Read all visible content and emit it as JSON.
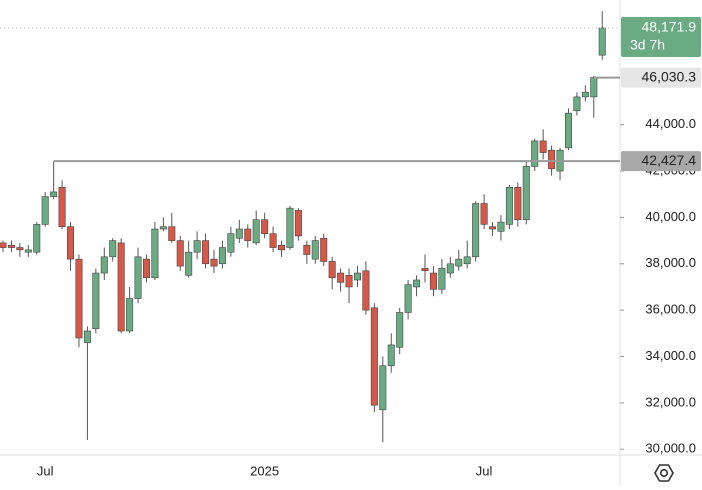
{
  "chart_data": {
    "type": "candlestick",
    "categories": [
      null,
      null,
      null,
      null,
      null,
      "Jul",
      null,
      null,
      null,
      null,
      null,
      null,
      null,
      null,
      null,
      null,
      null,
      null,
      null,
      null,
      null,
      null,
      null,
      null,
      null,
      null,
      null,
      null,
      null,
      null,
      null,
      "2025",
      null,
      null,
      null,
      null,
      null,
      null,
      null,
      null,
      null,
      null,
      null,
      null,
      null,
      null,
      null,
      null,
      null,
      null,
      null,
      null,
      null,
      null,
      null,
      null,
      null,
      "Jul",
      null,
      null,
      null,
      null,
      null,
      null,
      null,
      null,
      null,
      null,
      null,
      null,
      null,
      null
    ],
    "open": [
      38900,
      38800,
      38700,
      38500,
      38500,
      39700,
      40900,
      41300,
      39600,
      38200,
      34600,
      35200,
      37600,
      38300,
      38900,
      35100,
      36500,
      38200,
      37400,
      39500,
      39600,
      39000,
      37500,
      38500,
      39000,
      38200,
      38000,
      38500,
      39100,
      39500,
      38900,
      39900,
      39300,
      38800,
      38700,
      40300,
      38800,
      38200,
      39100,
      38100,
      37600,
      37500,
      37300,
      37700,
      36100,
      31700,
      33600,
      34400,
      35900,
      37000,
      37800,
      37600,
      36900,
      37600,
      37900,
      38000,
      38300,
      40600,
      39600,
      39400,
      39700,
      41300,
      39900,
      42200,
      43300,
      42900,
      42000,
      43000,
      44600,
      45200,
      45200,
      47000
    ],
    "high": [
      39000,
      39000,
      38900,
      38800,
      39800,
      41100,
      42427.4,
      41600,
      39800,
      38400,
      35300,
      37800,
      38700,
      39100,
      39100,
      37000,
      38700,
      38400,
      39800,
      40000,
      40200,
      39200,
      39000,
      39400,
      39300,
      38600,
      39000,
      39600,
      39900,
      39700,
      40300,
      40200,
      39600,
      39000,
      40500,
      40400,
      39000,
      39200,
      39300,
      38300,
      37800,
      37800,
      37900,
      38100,
      36300,
      34000,
      35000,
      36100,
      37300,
      37500,
      38400,
      37900,
      38200,
      38300,
      38600,
      39000,
      40700,
      41000,
      39800,
      40100,
      41400,
      41500,
      42400,
      43400,
      43800,
      43100,
      43000,
      44700,
      45400,
      45700,
      46100,
      48900
    ],
    "low": [
      38500,
      38500,
      38300,
      38300,
      38400,
      39600,
      40800,
      39500,
      37700,
      34400,
      30400,
      35000,
      37300,
      38100,
      35000,
      35000,
      36300,
      37200,
      37300,
      39400,
      38900,
      37700,
      37400,
      38200,
      37800,
      37600,
      37800,
      38300,
      38900,
      38700,
      38800,
      39100,
      38500,
      38300,
      38600,
      39000,
      38000,
      38000,
      37900,
      36900,
      36800,
      36300,
      37000,
      35800,
      31600,
      30300,
      33300,
      34100,
      35600,
      36600,
      37200,
      36600,
      36700,
      37400,
      37700,
      37800,
      38100,
      39500,
      39200,
      39000,
      39500,
      39600,
      39700,
      42000,
      42500,
      41800,
      41600,
      42900,
      44400,
      45000,
      44300,
      46800
    ],
    "close": [
      38700,
      38700,
      38600,
      38600,
      39700,
      40900,
      41100,
      39600,
      38200,
      34800,
      35100,
      37600,
      38300,
      39000,
      35100,
      36500,
      38300,
      37400,
      39500,
      39600,
      39000,
      37900,
      38500,
      39000,
      38000,
      37900,
      38700,
      39300,
      39500,
      39000,
      39900,
      39300,
      38700,
      38600,
      40400,
      39200,
      38400,
      39000,
      38100,
      37400,
      37200,
      37000,
      37600,
      36000,
      31900,
      33600,
      34500,
      35900,
      37100,
      37300,
      37700,
      36900,
      37800,
      38000,
      38200,
      38300,
      40600,
      39700,
      39500,
      39800,
      41300,
      39900,
      42200,
      43300,
      42800,
      42100,
      42900,
      44500,
      45200,
      45400,
      46030.3,
      48171.9
    ],
    "up_color": "#6aab84",
    "down_color": "#d65848",
    "ylim": [
      29750,
      49380
    ],
    "yticks": [
      {
        "value": 30000,
        "label": "30,000.0"
      },
      {
        "value": 32000,
        "label": "32,000.0"
      },
      {
        "value": 34000,
        "label": "34,000.0"
      },
      {
        "value": 36000,
        "label": "36,000.0"
      },
      {
        "value": 38000,
        "label": "38,000.0"
      },
      {
        "value": 40000,
        "label": "40,000.0"
      },
      {
        "value": 42000,
        "label": "42,000.0"
      },
      {
        "value": 44000,
        "label": "44,000.0"
      }
    ],
    "price_lines": [
      {
        "value": 48171.9,
        "label": "48,171.9",
        "sublabel": "3d 7h",
        "style": "dotted",
        "color": "#6aab84",
        "text_color": "#ffffff"
      },
      {
        "value": 46030.3,
        "label": "46,030.3",
        "style": "solid",
        "color": "#e6e6e6",
        "text_color": "#222222"
      },
      {
        "value": 42427.4,
        "label": "42,427.4",
        "style": "solid",
        "color": "#a8a8a8",
        "text_color": "#222222"
      }
    ]
  }
}
